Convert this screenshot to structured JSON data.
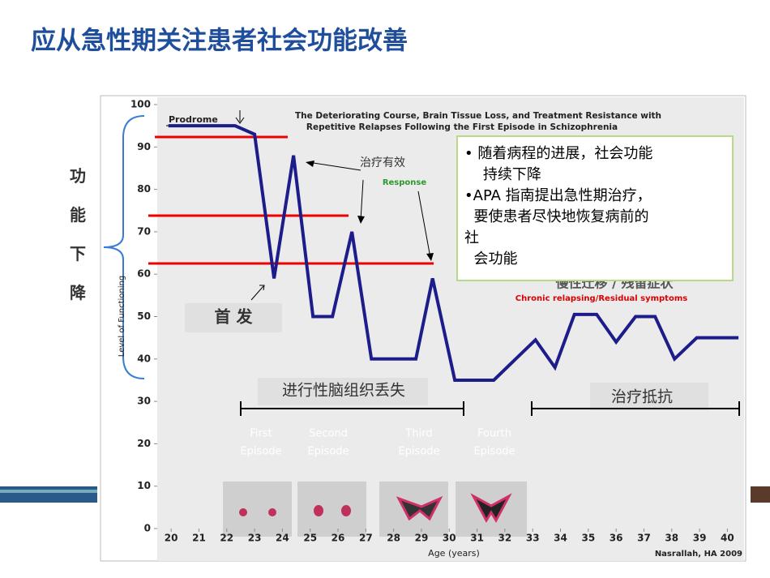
{
  "slide_title": "应从急性期关注患者社会功能改善",
  "side_label": [
    "功",
    "能",
    "下",
    "降"
  ],
  "notes": [
    [
      "随着病程的进展，社会功能",
      "持续下降"
    ],
    [
      "APA 指南提出急性期治疗，",
      "要使患者尽快地恢复病前的",
      "社",
      "会功能"
    ]
  ],
  "chart_data": {
    "type": "line",
    "title": [
      "The Deteriorating Course, Brain Tissue Loss, and Treatment Resistance with",
      "Repetitive Relapses Following the First Episode in Schizophrenia"
    ],
    "x_label": "Age (years)",
    "y_label": "Level of Functioning",
    "source": "Nasrallah, HA 2009",
    "annotations": {
      "prodrome": "Prodrome",
      "response_cn": "治疗有效",
      "response_en": "Response",
      "first_onset": "首 发",
      "chronic_cn": "慢性迁移 / 残留症状",
      "chronic_en": "Chronic relapsing/Residual symptoms",
      "brain_loss": "进行性脑组织丢失",
      "treatment_resistance": "治疗抵抗"
    },
    "episodes": [
      [
        "First",
        "Episode"
      ],
      [
        "Second",
        "Episode"
      ],
      [
        "Third",
        "Episode"
      ],
      [
        "Fourth",
        "Episode"
      ]
    ],
    "x": [
      19.9,
      22.3,
      23,
      23.7,
      24.4,
      25.1,
      25.8,
      26.5,
      27.2,
      28.8,
      29.4,
      30.2,
      31.6,
      33.1,
      33.8,
      34.5,
      35.3,
      36,
      36.7,
      37.4,
      38.1,
      38.9,
      40.4
    ],
    "values": [
      95,
      95,
      93,
      59,
      88,
      50,
      50,
      70,
      40,
      40,
      59,
      35,
      35,
      44.5,
      38,
      50.5,
      50.5,
      44,
      50,
      50,
      40,
      45,
      45
    ],
    "color": "#1c1c8a",
    "xlim": [
      19.5,
      40.6
    ],
    "ylim": [
      0,
      100
    ],
    "xticks": [
      20,
      21,
      22,
      23,
      24,
      25,
      26,
      27,
      28,
      29,
      30,
      31,
      32,
      33,
      34,
      35,
      36,
      37,
      38,
      39,
      40
    ],
    "yticks": [
      0,
      10,
      20,
      30,
      40,
      50,
      60,
      70,
      80,
      90,
      100
    ]
  }
}
